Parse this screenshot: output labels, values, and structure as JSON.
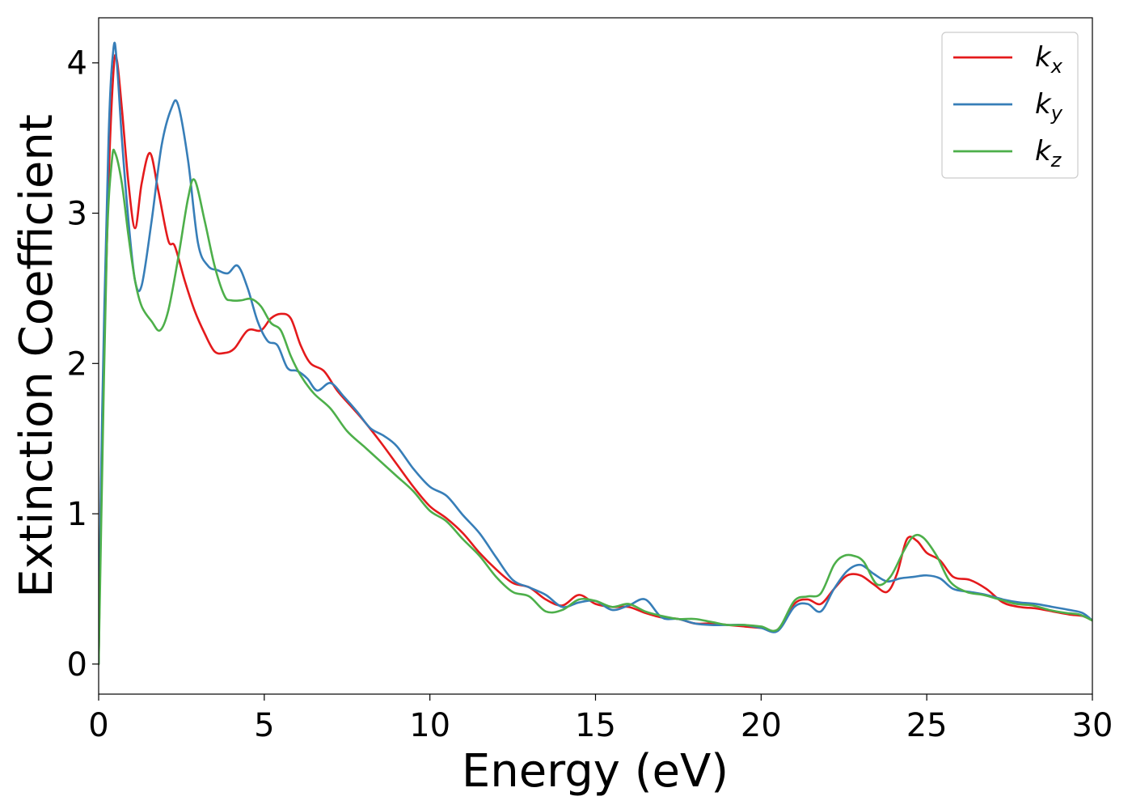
{
  "chart_data": {
    "type": "line",
    "title": "",
    "xlabel": "Energy (eV)",
    "ylabel": "Extinction Coefficient",
    "xlim": [
      0,
      30
    ],
    "ylim": [
      -0.2,
      4.3
    ],
    "xticks": [
      0,
      5,
      10,
      15,
      20,
      25,
      30
    ],
    "xtick_labels": [
      "0",
      "5",
      "10",
      "15",
      "20",
      "25",
      "30"
    ],
    "yticks": [
      0,
      1,
      2,
      3,
      4
    ],
    "ytick_labels": [
      "0",
      "1",
      "2",
      "3",
      "4"
    ],
    "grid": false,
    "legend_position": "top-right",
    "series": [
      {
        "name": "k",
        "subscript": "x",
        "color": "#e41a1c",
        "x": [
          0,
          0.1,
          0.3,
          0.45,
          0.55,
          0.7,
          0.9,
          1.1,
          1.3,
          1.55,
          1.8,
          2.1,
          2.3,
          2.6,
          2.9,
          3.2,
          3.5,
          3.8,
          4.1,
          4.5,
          4.9,
          5.2,
          5.5,
          5.8,
          6.1,
          6.4,
          6.8,
          7.2,
          7.6,
          8.0,
          8.5,
          9.0,
          9.5,
          10.0,
          10.5,
          11.0,
          11.5,
          12.0,
          12.5,
          13.0,
          13.5,
          14.0,
          14.5,
          15.0,
          15.5,
          16.0,
          16.5,
          17.0,
          17.5,
          18.0,
          18.5,
          19.0,
          19.5,
          20.0,
          20.5,
          21.0,
          21.4,
          21.8,
          22.2,
          22.6,
          23.0,
          23.4,
          23.8,
          24.1,
          24.4,
          24.7,
          25.0,
          25.4,
          25.8,
          26.3,
          26.8,
          27.3,
          27.8,
          28.3,
          28.8,
          29.3,
          29.7,
          30.0
        ],
        "values": [
          0,
          1.5,
          3.2,
          3.95,
          4.02,
          3.7,
          3.2,
          2.9,
          3.2,
          3.4,
          3.15,
          2.82,
          2.78,
          2.55,
          2.35,
          2.2,
          2.08,
          2.07,
          2.1,
          2.22,
          2.22,
          2.3,
          2.33,
          2.3,
          2.12,
          2.0,
          1.95,
          1.82,
          1.72,
          1.62,
          1.48,
          1.33,
          1.18,
          1.05,
          0.97,
          0.87,
          0.74,
          0.63,
          0.54,
          0.51,
          0.43,
          0.39,
          0.46,
          0.4,
          0.38,
          0.38,
          0.34,
          0.31,
          0.3,
          0.27,
          0.27,
          0.26,
          0.25,
          0.24,
          0.23,
          0.4,
          0.43,
          0.4,
          0.5,
          0.59,
          0.59,
          0.53,
          0.48,
          0.6,
          0.83,
          0.82,
          0.74,
          0.69,
          0.58,
          0.56,
          0.5,
          0.41,
          0.38,
          0.37,
          0.35,
          0.33,
          0.32,
          0.29
        ]
      },
      {
        "name": "k",
        "subscript": "y",
        "color": "#377eb8",
        "x": [
          0,
          0.1,
          0.3,
          0.45,
          0.55,
          0.7,
          0.9,
          1.1,
          1.3,
          1.6,
          1.9,
          2.2,
          2.4,
          2.7,
          3.0,
          3.3,
          3.6,
          3.9,
          4.2,
          4.5,
          4.8,
          5.1,
          5.4,
          5.7,
          6.0,
          6.3,
          6.6,
          7.0,
          7.4,
          7.8,
          8.2,
          8.6,
          9.0,
          9.5,
          10.0,
          10.5,
          11.0,
          11.5,
          12.0,
          12.5,
          13.0,
          13.5,
          14.0,
          14.5,
          15.0,
          15.5,
          16.0,
          16.5,
          17.0,
          17.5,
          18.0,
          18.5,
          19.0,
          19.5,
          20.0,
          20.5,
          21.0,
          21.4,
          21.8,
          22.2,
          22.6,
          23.0,
          23.4,
          23.8,
          24.2,
          24.6,
          25.0,
          25.4,
          25.8,
          26.3,
          26.8,
          27.3,
          27.8,
          28.3,
          28.8,
          29.3,
          29.7,
          30.0
        ],
        "values": [
          0,
          1.6,
          3.5,
          4.1,
          4.0,
          3.5,
          2.95,
          2.55,
          2.52,
          2.95,
          3.45,
          3.7,
          3.72,
          3.35,
          2.8,
          2.65,
          2.62,
          2.6,
          2.65,
          2.5,
          2.28,
          2.15,
          2.12,
          1.97,
          1.95,
          1.9,
          1.82,
          1.87,
          1.78,
          1.68,
          1.57,
          1.52,
          1.45,
          1.3,
          1.18,
          1.12,
          0.99,
          0.87,
          0.71,
          0.56,
          0.51,
          0.46,
          0.38,
          0.41,
          0.42,
          0.36,
          0.39,
          0.43,
          0.31,
          0.3,
          0.27,
          0.26,
          0.26,
          0.26,
          0.24,
          0.22,
          0.38,
          0.4,
          0.35,
          0.5,
          0.62,
          0.66,
          0.6,
          0.55,
          0.57,
          0.58,
          0.59,
          0.57,
          0.5,
          0.48,
          0.46,
          0.43,
          0.41,
          0.4,
          0.38,
          0.36,
          0.34,
          0.29
        ]
      },
      {
        "name": "k",
        "subscript": "z",
        "color": "#4daf4a",
        "x": [
          0,
          0.1,
          0.25,
          0.4,
          0.5,
          0.7,
          0.9,
          1.1,
          1.3,
          1.6,
          1.85,
          2.1,
          2.4,
          2.7,
          2.9,
          3.2,
          3.5,
          3.8,
          4.0,
          4.3,
          4.6,
          4.9,
          5.2,
          5.5,
          5.8,
          6.1,
          6.5,
          7.0,
          7.5,
          8.0,
          8.5,
          9.0,
          9.5,
          10.0,
          10.5,
          11.0,
          11.5,
          12.0,
          12.5,
          13.0,
          13.5,
          14.0,
          14.5,
          15.0,
          15.5,
          16.0,
          16.5,
          17.0,
          17.5,
          18.0,
          18.5,
          19.0,
          19.5,
          20.0,
          20.5,
          21.0,
          21.4,
          21.8,
          22.2,
          22.5,
          22.8,
          23.1,
          23.5,
          23.9,
          24.3,
          24.6,
          24.9,
          25.3,
          25.7,
          26.2,
          26.7,
          27.2,
          27.7,
          28.2,
          28.7,
          29.2,
          29.6,
          30.0
        ],
        "values": [
          0,
          1.2,
          2.8,
          3.35,
          3.4,
          3.2,
          2.85,
          2.55,
          2.38,
          2.28,
          2.22,
          2.35,
          2.7,
          3.1,
          3.22,
          2.95,
          2.65,
          2.45,
          2.42,
          2.42,
          2.43,
          2.38,
          2.27,
          2.22,
          2.05,
          1.92,
          1.8,
          1.7,
          1.55,
          1.45,
          1.35,
          1.25,
          1.15,
          1.02,
          0.95,
          0.83,
          0.72,
          0.58,
          0.48,
          0.45,
          0.35,
          0.36,
          0.43,
          0.42,
          0.38,
          0.4,
          0.35,
          0.32,
          0.3,
          0.3,
          0.28,
          0.26,
          0.26,
          0.25,
          0.23,
          0.42,
          0.45,
          0.47,
          0.66,
          0.72,
          0.72,
          0.68,
          0.53,
          0.58,
          0.75,
          0.85,
          0.84,
          0.72,
          0.55,
          0.48,
          0.46,
          0.43,
          0.4,
          0.39,
          0.36,
          0.34,
          0.33,
          0.29
        ]
      }
    ]
  }
}
